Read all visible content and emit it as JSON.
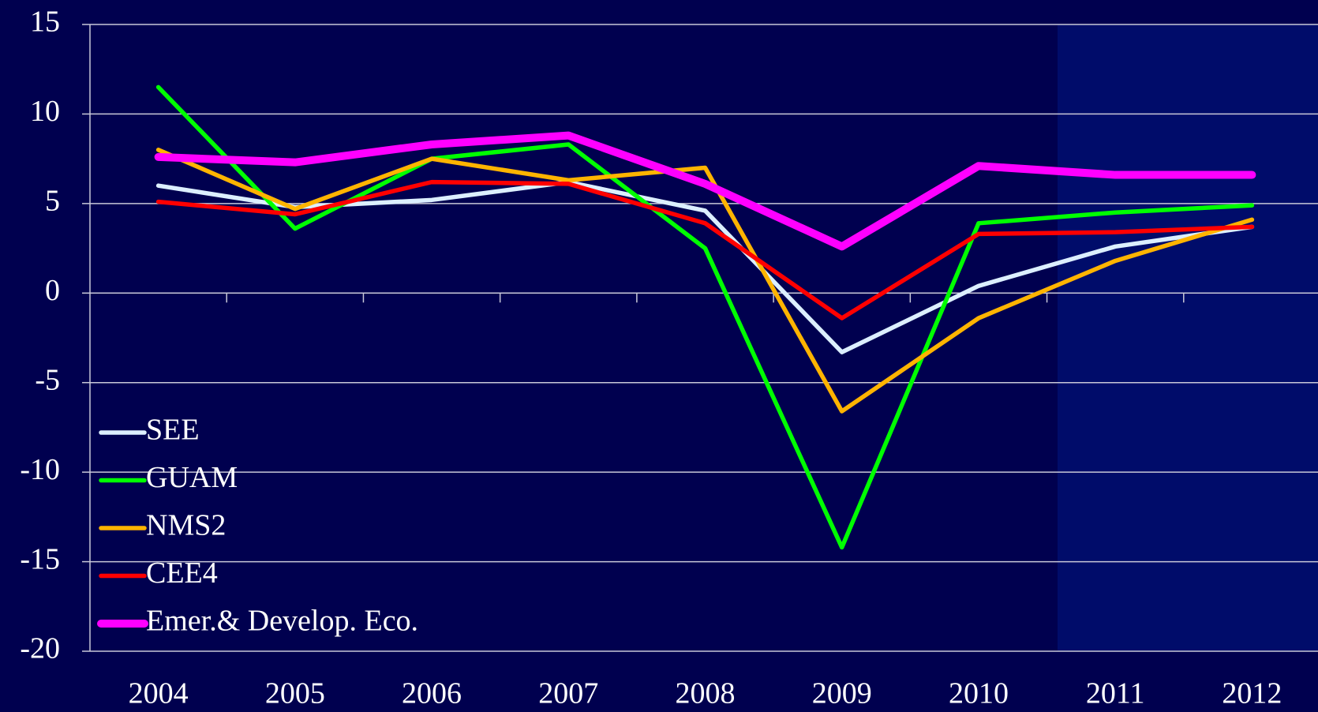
{
  "chart_data": {
    "type": "line",
    "categories": [
      "2004",
      "2005",
      "2006",
      "2007",
      "2008",
      "2009",
      "2010",
      "2011",
      "2012"
    ],
    "series": [
      {
        "name": "SEE",
        "color": "#dcefff",
        "values": [
          6.0,
          4.8,
          5.2,
          6.2,
          4.6,
          -3.3,
          0.4,
          2.6,
          3.7
        ]
      },
      {
        "name": "GUAM",
        "color": "#00ff00",
        "values": [
          11.5,
          3.6,
          7.5,
          8.3,
          2.5,
          -14.2,
          3.9,
          4.5,
          4.9
        ]
      },
      {
        "name": "NMS2",
        "color": "#ffb400",
        "values": [
          8.0,
          4.7,
          7.5,
          6.3,
          7.0,
          -6.6,
          -1.4,
          1.8,
          4.1
        ]
      },
      {
        "name": "CEE4",
        "color": "#ff0000",
        "values": [
          5.1,
          4.4,
          6.2,
          6.1,
          3.9,
          -1.4,
          3.3,
          3.4,
          3.7
        ]
      },
      {
        "name": "Emer.& Develop. Eco.",
        "color": "#ff00ff",
        "values": [
          7.6,
          7.3,
          8.3,
          8.8,
          6.1,
          2.6,
          7.1,
          6.6,
          6.6
        ]
      }
    ],
    "ylim": [
      -20,
      15
    ],
    "yticks": [
      -20,
      -15,
      -10,
      -5,
      0,
      5,
      10,
      15
    ],
    "grid": true,
    "legend": "lower left"
  }
}
